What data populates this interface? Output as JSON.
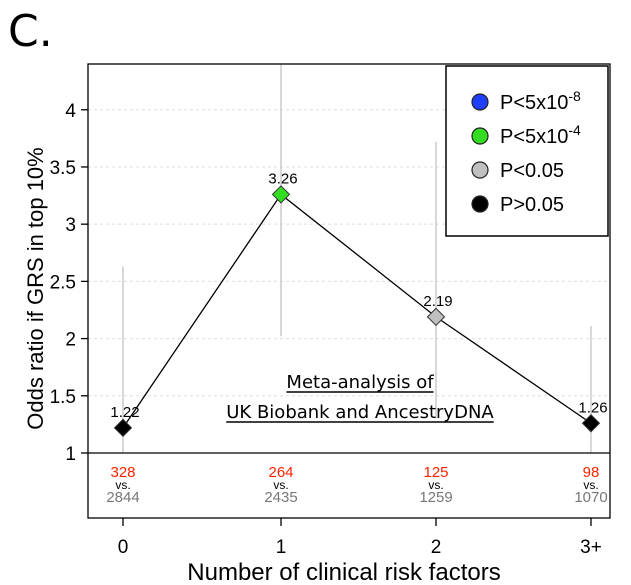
{
  "panel_label": "C.",
  "chart_data": {
    "type": "line",
    "xlabel": "Number of clinical risk factors",
    "ylabel": "Odds ratio if GRS in top 10%",
    "categories": [
      "0",
      "1",
      "2",
      "3+"
    ],
    "ylim": [
      1,
      4.4
    ],
    "yticks": [
      1,
      1.5,
      2,
      2.5,
      3,
      3.5,
      4
    ],
    "ytick_labels": [
      "1",
      "1.5",
      "2",
      "2.5",
      "3",
      "3.5",
      "4"
    ],
    "grid": true,
    "points": [
      {
        "category": "0",
        "value": 1.22,
        "label": "1.22",
        "ci": [
          1.0,
          2.63
        ],
        "p_class": "P>0.05"
      },
      {
        "category": "1",
        "value": 3.26,
        "label": "3.26",
        "ci": [
          2.02,
          4.4
        ],
        "p_class": "P<5x10-4"
      },
      {
        "category": "2",
        "value": 2.19,
        "label": "2.19",
        "ci": [
          1.3,
          3.72
        ],
        "p_class": "P<0.05"
      },
      {
        "category": "3+",
        "value": 1.26,
        "label": "1.26",
        "ci": [
          1.0,
          2.11
        ],
        "p_class": "P>0.05"
      }
    ],
    "counts": [
      {
        "top": "328",
        "vs": "vs.",
        "bottom": "2844"
      },
      {
        "top": "264",
        "vs": "vs.",
        "bottom": "2435"
      },
      {
        "top": "125",
        "vs": "vs.",
        "bottom": "1259"
      },
      {
        "top": "98",
        "vs": "vs.",
        "bottom": "1070"
      }
    ],
    "annotation": [
      "Meta-analysis of",
      "UK Biobank and AncestryDNA"
    ],
    "legend": {
      "placement": "top-right",
      "entries": [
        {
          "key": "P<5x10-8",
          "base": "P<5x10",
          "exp": "-8",
          "color": "#1f3fff"
        },
        {
          "key": "P<5x10-4",
          "base": "P<5x10",
          "exp": "-4",
          "color": "#33dd22"
        },
        {
          "key": "P<0.05",
          "base": "P<0.05",
          "exp": "",
          "color": "#c0c0c0"
        },
        {
          "key": "P>0.05",
          "base": "P>0.05",
          "exp": "",
          "color": "#000000"
        }
      ]
    },
    "colors": {
      "count_top": "#ff2200",
      "count_bottom": "#777777",
      "ci_line": "#cccccc",
      "connector": "#000000"
    }
  }
}
